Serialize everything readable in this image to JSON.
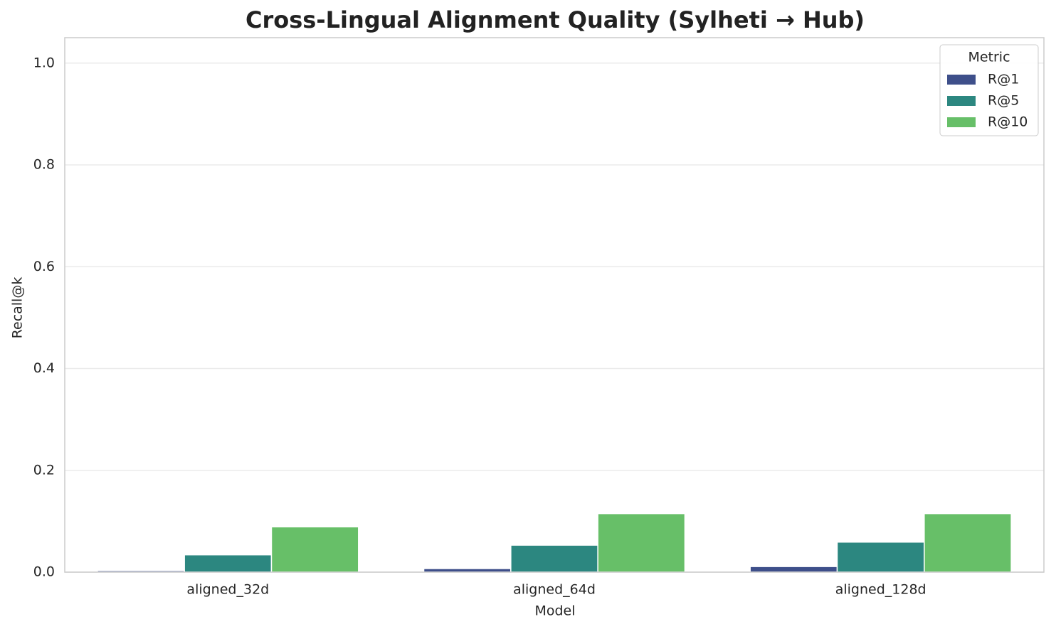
{
  "chart_data": {
    "type": "bar",
    "title": "Cross-Lingual Alignment Quality (Sylheti → Hub)",
    "x_label": "Model",
    "y_label": "Recall@k",
    "categories": [
      "aligned_32d",
      "aligned_64d",
      "aligned_128d"
    ],
    "series": [
      {
        "name": "R@1",
        "color": "#3e4f8a",
        "values": [
          0.003,
          0.007,
          0.011
        ]
      },
      {
        "name": "R@5",
        "color": "#2c8780",
        "values": [
          0.034,
          0.053,
          0.059
        ]
      },
      {
        "name": "R@10",
        "color": "#67bf68",
        "values": [
          0.089,
          0.115,
          0.115
        ]
      }
    ],
    "ylim": [
      0,
      1.05
    ],
    "yticks": [
      {
        "value": 0,
        "label": "0.0"
      },
      0.2,
      0.4,
      0.6,
      0.8,
      {
        "value": 1,
        "label": "1.0"
      }
    ],
    "grid": true,
    "legend_title": "Metric",
    "legend_position": "upper right"
  }
}
